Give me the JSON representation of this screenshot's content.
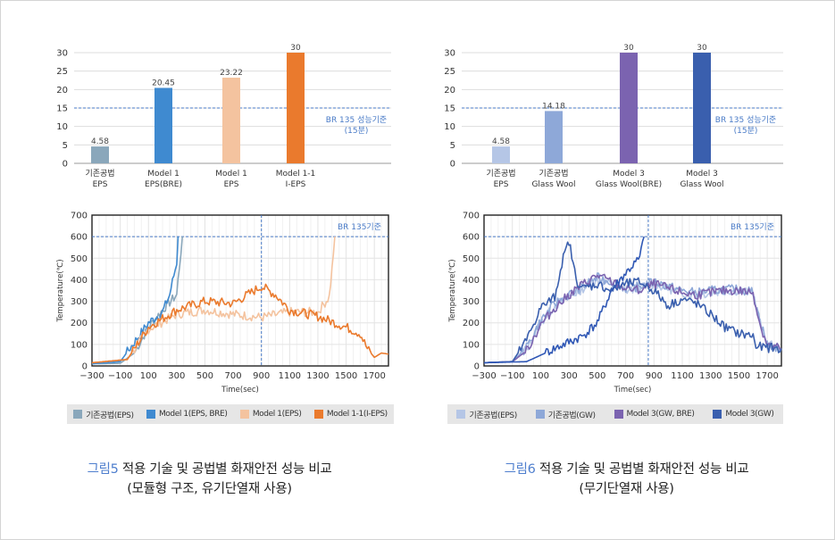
{
  "colors": {
    "grid": "#dddddd",
    "axis": "#9a9a9a",
    "br_line": "#4a7bc7",
    "br_text": "#4a7bc7",
    "caption_accent": "#4f7fce"
  },
  "figure5": {
    "caption_num": "그림5",
    "caption_line1": " 적용 기술 및 공법별 화재안전 성능 비교",
    "caption_line2": "(모듈형 구조, 유기단열재 사용)",
    "legend": [
      {
        "label": "기존공법(EPS)",
        "color": "#8aa7bb"
      },
      {
        "label": "Model 1(EPS, BRE)",
        "color": "#3f8ad0"
      },
      {
        "label": "Model 1(EPS)",
        "color": "#f4c39f"
      },
      {
        "label": "Model 1-1(I-EPS)",
        "color": "#ea7a2d"
      }
    ]
  },
  "figure6": {
    "caption_num": "그림6",
    "caption_line1": " 적용 기술 및 공법별 화재안전 성능 비교",
    "caption_line2": "(무기단열재 사용)",
    "legend": [
      {
        "label": "기존공법(EPS)",
        "color": "#b5c6e6"
      },
      {
        "label": "기존공법(GW)",
        "color": "#8ea8d8"
      },
      {
        "label": "Model 3(GW, BRE)",
        "color": "#7b63b0"
      },
      {
        "label": "Model 3(GW)",
        "color": "#3a5fae"
      }
    ]
  },
  "chart_data": [
    {
      "type": "bar",
      "title": "",
      "categories": [
        [
          "기존공법",
          "EPS"
        ],
        [
          "Model 1",
          "EPS(BRE)"
        ],
        [
          "Model 1",
          "EPS"
        ],
        [
          "Model 1-1",
          "I-EPS"
        ]
      ],
      "values": [
        4.58,
        20.45,
        23.22,
        30
      ],
      "value_labels": [
        "4.58",
        "20.45",
        "23.22",
        "30"
      ],
      "colors": [
        "#8aa7bb",
        "#3f8ad0",
        "#f4c39f",
        "#ea7a2d"
      ],
      "ylim": [
        0,
        30
      ],
      "yticks": [
        0,
        5,
        10,
        15,
        20,
        25,
        30
      ],
      "reference": {
        "value": 15,
        "label": [
          "BR 135 성능기준",
          "(15분)"
        ]
      },
      "grid": true
    },
    {
      "type": "line",
      "xlabel": "Time(sec)",
      "ylabel": "Temperature(℃)",
      "xlim": [
        -300,
        1800
      ],
      "ylim": [
        0,
        700
      ],
      "xticks": [
        -300,
        -100,
        100,
        300,
        500,
        700,
        900,
        1100,
        1300,
        1500,
        1700
      ],
      "yticks": [
        0,
        100,
        200,
        300,
        400,
        500,
        600,
        700
      ],
      "reference": {
        "y": 600,
        "x": 900,
        "label": "BR 135기준"
      },
      "series": [
        {
          "name": "기존공법(EPS)",
          "color": "#8aa7bb",
          "x": [
            -300,
            -100,
            0,
            100,
            200,
            300,
            340
          ],
          "y": [
            10,
            12,
            60,
            180,
            260,
            330,
            600
          ]
        },
        {
          "name": "Model 1(EPS, BRE)",
          "color": "#3f8ad0",
          "x": [
            -300,
            -100,
            0,
            100,
            200,
            250,
            300,
            310
          ],
          "y": [
            10,
            20,
            110,
            200,
            250,
            330,
            480,
            600
          ]
        },
        {
          "name": "Model 1(EPS)",
          "color": "#f4c39f",
          "x": [
            -300,
            -50,
            100,
            300,
            500,
            700,
            900,
            1100,
            1300,
            1380,
            1400,
            1420
          ],
          "y": [
            15,
            30,
            170,
            240,
            260,
            240,
            225,
            250,
            250,
            320,
            450,
            600
          ]
        },
        {
          "name": "Model 1-1(I-EPS)",
          "color": "#ea7a2d",
          "x": [
            -300,
            -50,
            100,
            300,
            500,
            700,
            900,
            1000,
            1100,
            1300,
            1500,
            1600,
            1650,
            1700,
            1750,
            1800
          ],
          "y": [
            15,
            30,
            180,
            260,
            300,
            290,
            370,
            330,
            260,
            230,
            180,
            150,
            80,
            40,
            60,
            55
          ]
        }
      ]
    },
    {
      "type": "bar",
      "title": "",
      "categories": [
        [
          "기존공법",
          "EPS"
        ],
        [
          "기존공법",
          "Glass Wool"
        ],
        [
          "Model 3",
          "Glass Wool(BRE)"
        ],
        [
          "Model 3",
          "Glass Wool"
        ]
      ],
      "values": [
        4.58,
        14.18,
        30,
        30
      ],
      "value_labels": [
        "4.58",
        "14.18",
        "30",
        "30"
      ],
      "colors": [
        "#b5c6e6",
        "#8ea8d8",
        "#7b63b0",
        "#3a5fae"
      ],
      "ylim": [
        0,
        30
      ],
      "yticks": [
        0,
        5,
        10,
        15,
        20,
        25,
        30
      ],
      "reference": {
        "value": 15,
        "label": [
          "BR 135 성능기준",
          "(15분)"
        ]
      },
      "grid": true
    },
    {
      "type": "line",
      "xlabel": "Time(sec)",
      "ylabel": "Temperature(℃)",
      "xlim": [
        -300,
        1800
      ],
      "ylim": [
        0,
        700
      ],
      "xticks": [
        -300,
        -100,
        100,
        300,
        500,
        700,
        900,
        1100,
        1300,
        1500,
        1700
      ],
      "yticks": [
        0,
        100,
        200,
        300,
        400,
        500,
        600,
        700
      ],
      "reference": {
        "y": 600,
        "x": 860,
        "label": "BR 135기준"
      },
      "series": [
        {
          "name": "기존공법(EPS)",
          "color": "#b5c6e6",
          "x": [
            -300,
            -100,
            0,
            100,
            200,
            300,
            400,
            500,
            600,
            700,
            800,
            900,
            1000,
            1100,
            1200,
            1300,
            1400,
            1500,
            1600,
            1650,
            1700,
            1800
          ],
          "y": [
            15,
            20,
            80,
            200,
            280,
            320,
            360,
            400,
            380,
            350,
            360,
            380,
            360,
            340,
            330,
            340,
            350,
            350,
            340,
            200,
            100,
            80
          ]
        },
        {
          "name": "기존공법(GW)",
          "color": "#8ea8d8",
          "x": [
            -300,
            -100,
            0,
            100,
            200,
            300,
            400,
            500,
            600,
            700,
            800,
            900,
            1000,
            1100,
            1200,
            1300,
            1400,
            1500,
            1600,
            1650,
            1700,
            1800
          ],
          "y": [
            15,
            20,
            85,
            210,
            290,
            330,
            370,
            410,
            390,
            360,
            370,
            390,
            370,
            350,
            340,
            350,
            355,
            355,
            345,
            205,
            100,
            80
          ]
        },
        {
          "name": "Model 3(GW, BRE)",
          "color": "#7b63b0",
          "x": [
            -300,
            -100,
            0,
            100,
            200,
            300,
            400,
            500,
            600,
            700,
            800,
            900,
            1000,
            1100,
            1200,
            1300,
            1400,
            1500,
            1600,
            1650,
            1700,
            1800
          ],
          "y": [
            15,
            20,
            70,
            190,
            270,
            330,
            380,
            420,
            390,
            360,
            350,
            380,
            360,
            340,
            330,
            340,
            350,
            350,
            340,
            190,
            100,
            80
          ]
        },
        {
          "name": "Model 3(GW)",
          "color": "#3a5fae",
          "x": [
            -300,
            -100,
            0,
            100,
            200,
            250,
            300,
            350,
            400,
            500,
            600,
            700,
            800,
            900,
            1000,
            1100,
            1200,
            1300,
            1400,
            1500,
            1600,
            1620,
            1700,
            1800
          ],
          "y": [
            15,
            20,
            120,
            270,
            320,
            480,
            580,
            400,
            360,
            380,
            350,
            380,
            390,
            350,
            280,
            310,
            290,
            240,
            180,
            150,
            140,
            90,
            85,
            80
          ]
        },
        {
          "name": "",
          "color": "#2f57b5",
          "x": [
            -300,
            0,
            100,
            200,
            300,
            400,
            500,
            600,
            700,
            800,
            830
          ],
          "y": [
            15,
            20,
            50,
            80,
            110,
            140,
            200,
            350,
            430,
            500,
            600
          ]
        }
      ]
    }
  ]
}
